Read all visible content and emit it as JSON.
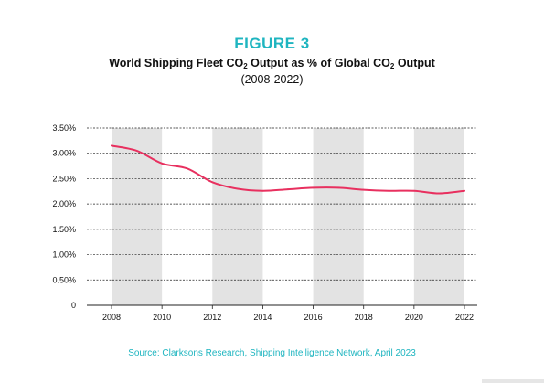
{
  "figure_label": "FIGURE 3",
  "title_parts": [
    "World Shipping Fleet CO",
    "2",
    " Output as % of Global CO",
    "2",
    " Output"
  ],
  "subtitle": "(2008-2022)",
  "source": "Source: Clarksons Research, Shipping Intelligence Network, April 2023",
  "colors": {
    "accent": "#1fb5c0",
    "line": "#e8305f",
    "band": "#e3e3e3",
    "grid": "#222222"
  },
  "chart_data": {
    "type": "line",
    "xlim": [
      2008,
      2022
    ],
    "ylim": [
      0,
      3.5
    ],
    "x_ticks": [
      2008,
      2010,
      2012,
      2014,
      2016,
      2018,
      2020,
      2022
    ],
    "y_ticks": [
      0,
      0.5,
      1.0,
      1.5,
      2.0,
      2.5,
      3.0,
      3.5
    ],
    "y_tick_labels": [
      "0",
      "0.50%",
      "1.00%",
      "1.50%",
      "2.00%",
      "2.50%",
      "3.00%",
      "3.50%"
    ],
    "shaded_bands": [
      [
        2008,
        2010
      ],
      [
        2012,
        2014
      ],
      [
        2016,
        2018
      ],
      [
        2020,
        2022
      ]
    ],
    "grid": "horizontal",
    "series": [
      {
        "x": [
          2008,
          2009,
          2010,
          2011,
          2012,
          2013,
          2014,
          2015,
          2016,
          2017,
          2018,
          2019,
          2020,
          2021,
          2022
        ],
        "values": [
          3.15,
          3.05,
          2.8,
          2.7,
          2.43,
          2.3,
          2.26,
          2.29,
          2.32,
          2.32,
          2.28,
          2.26,
          2.26,
          2.21,
          2.26
        ]
      }
    ]
  }
}
